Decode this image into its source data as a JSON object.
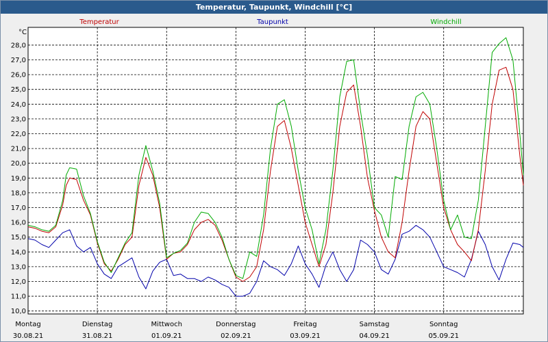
{
  "window": {
    "title": "Temperatur, Taupunkt, Windchill [°C]"
  },
  "chart_data": {
    "type": "line",
    "title": "Temperatur, Taupunkt, Windchill [°C]",
    "ylabel": "°C",
    "ylim": [
      9.8,
      29.2
    ],
    "yticks": [
      "10,0",
      "11,0",
      "12,0",
      "13,0",
      "14,0",
      "15,0",
      "16,0",
      "17,0",
      "18,0",
      "19,0",
      "20,0",
      "21,0",
      "22,0",
      "23,0",
      "24,0",
      "25,0",
      "26,0",
      "27,0",
      "28,0"
    ],
    "xlim": [
      0,
      7.15
    ],
    "grid": true,
    "days": [
      {
        "weekday": "Montag",
        "date": "30.08.21"
      },
      {
        "weekday": "Dienstag",
        "date": "31.08.21"
      },
      {
        "weekday": "Mittwoch",
        "date": "01.09.21"
      },
      {
        "weekday": "Donnerstag",
        "date": "02.09.21"
      },
      {
        "weekday": "Freitag",
        "date": "03.09.21"
      },
      {
        "weekday": "Samstag",
        "date": "04.09.21"
      },
      {
        "weekday": "Sonntag",
        "date": "05.09.21"
      }
    ],
    "series": [
      {
        "name": "Temperatur",
        "color": "#c00000",
        "x": [
          0,
          0.1,
          0.2,
          0.3,
          0.4,
          0.5,
          0.55,
          0.6,
          0.7,
          0.8,
          0.9,
          1.0,
          1.1,
          1.2,
          1.3,
          1.4,
          1.5,
          1.6,
          1.7,
          1.8,
          1.9,
          2.0,
          2.1,
          2.2,
          2.3,
          2.4,
          2.5,
          2.6,
          2.7,
          2.8,
          2.9,
          3.0,
          3.1,
          3.2,
          3.3,
          3.4,
          3.5,
          3.6,
          3.7,
          3.8,
          3.9,
          4.0,
          4.1,
          4.2,
          4.3,
          4.4,
          4.5,
          4.6,
          4.7,
          4.8,
          4.9,
          5.0,
          5.1,
          5.2,
          5.3,
          5.4,
          5.5,
          5.6,
          5.7,
          5.8,
          5.9,
          6.0,
          6.1,
          6.2,
          6.3,
          6.4,
          6.5,
          6.6,
          6.7,
          6.8,
          6.9,
          7.0,
          7.1,
          7.15
        ],
        "values": [
          15.7,
          15.6,
          15.4,
          15.3,
          15.7,
          17.2,
          18.5,
          19.0,
          18.9,
          17.5,
          16.5,
          14.6,
          13.2,
          12.7,
          13.5,
          14.5,
          15.0,
          18.5,
          20.4,
          19.2,
          17.0,
          13.5,
          13.9,
          14.0,
          14.5,
          15.5,
          16.0,
          16.2,
          15.8,
          14.8,
          13.5,
          12.3,
          12.0,
          12.3,
          13.0,
          15.5,
          19.5,
          22.5,
          22.9,
          21.0,
          18.5,
          16.0,
          14.5,
          13.0,
          14.5,
          18.0,
          22.5,
          24.8,
          25.3,
          22.5,
          19.0,
          16.8,
          15.0,
          14.0,
          13.6,
          16.0,
          19.5,
          22.5,
          23.5,
          23.0,
          20.0,
          17.0,
          15.5,
          14.5,
          14.0,
          13.4,
          15.5,
          19.5,
          24.0,
          26.3,
          26.5,
          25.0,
          20.5,
          18.5
        ]
      },
      {
        "name": "Taupunkt",
        "color": "#0000aa",
        "x": [
          0,
          0.1,
          0.2,
          0.3,
          0.4,
          0.5,
          0.6,
          0.7,
          0.8,
          0.9,
          1.0,
          1.1,
          1.2,
          1.3,
          1.4,
          1.5,
          1.6,
          1.7,
          1.8,
          1.9,
          2.0,
          2.1,
          2.2,
          2.3,
          2.4,
          2.5,
          2.6,
          2.7,
          2.8,
          2.9,
          3.0,
          3.1,
          3.2,
          3.3,
          3.4,
          3.5,
          3.6,
          3.7,
          3.8,
          3.9,
          4.0,
          4.1,
          4.2,
          4.3,
          4.4,
          4.5,
          4.6,
          4.7,
          4.8,
          4.9,
          5.0,
          5.1,
          5.2,
          5.3,
          5.4,
          5.5,
          5.6,
          5.7,
          5.8,
          5.9,
          6.0,
          6.1,
          6.2,
          6.3,
          6.4,
          6.5,
          6.6,
          6.7,
          6.8,
          6.9,
          7.0,
          7.1,
          7.15
        ],
        "values": [
          14.9,
          14.8,
          14.5,
          14.3,
          14.8,
          15.3,
          15.5,
          14.4,
          14.0,
          14.3,
          13.2,
          12.5,
          12.2,
          13.0,
          13.3,
          13.6,
          12.3,
          11.5,
          12.7,
          13.3,
          13.5,
          12.4,
          12.5,
          12.2,
          12.2,
          12.0,
          12.3,
          12.1,
          11.8,
          11.6,
          11.0,
          11.0,
          11.2,
          12.0,
          13.4,
          13.0,
          12.8,
          12.4,
          13.2,
          14.4,
          13.2,
          12.5,
          11.6,
          13.1,
          14.0,
          12.8,
          12.0,
          12.8,
          14.8,
          14.5,
          14.0,
          12.8,
          12.5,
          13.5,
          15.2,
          15.4,
          15.8,
          15.5,
          15.0,
          14.0,
          13.0,
          12.8,
          12.6,
          12.3,
          13.5,
          15.4,
          14.5,
          13.0,
          12.1,
          13.5,
          14.6,
          14.5,
          14.3
        ]
      },
      {
        "name": "Windchill",
        "color": "#00aa00",
        "x": [
          0,
          0.1,
          0.2,
          0.3,
          0.4,
          0.5,
          0.55,
          0.6,
          0.7,
          0.8,
          0.9,
          1.0,
          1.1,
          1.2,
          1.3,
          1.4,
          1.5,
          1.6,
          1.7,
          1.8,
          1.9,
          2.0,
          2.1,
          2.2,
          2.3,
          2.4,
          2.5,
          2.6,
          2.7,
          2.8,
          2.9,
          3.0,
          3.1,
          3.2,
          3.3,
          3.4,
          3.5,
          3.6,
          3.7,
          3.8,
          3.9,
          4.0,
          4.1,
          4.2,
          4.3,
          4.4,
          4.5,
          4.6,
          4.7,
          4.8,
          4.9,
          5.0,
          5.1,
          5.2,
          5.3,
          5.4,
          5.5,
          5.6,
          5.7,
          5.8,
          5.9,
          6.0,
          6.1,
          6.2,
          6.3,
          6.4,
          6.5,
          6.6,
          6.7,
          6.8,
          6.9,
          7.0,
          7.1,
          7.15
        ],
        "values": [
          15.8,
          15.7,
          15.5,
          15.4,
          15.8,
          17.5,
          19.2,
          19.7,
          19.6,
          17.8,
          16.6,
          14.7,
          13.3,
          12.6,
          13.6,
          14.6,
          15.3,
          19.2,
          21.2,
          19.5,
          17.3,
          13.6,
          13.9,
          14.1,
          14.6,
          16.0,
          16.7,
          16.6,
          16.0,
          15.0,
          13.5,
          12.4,
          12.2,
          14.0,
          13.7,
          16.5,
          21.0,
          24.0,
          24.3,
          22.5,
          19.5,
          17.0,
          15.5,
          13.2,
          15.5,
          19.5,
          24.5,
          26.9,
          27.0,
          23.5,
          20.5,
          17.0,
          16.5,
          15.0,
          19.1,
          18.9,
          22.5,
          24.5,
          24.8,
          24.0,
          21.0,
          17.5,
          15.5,
          16.5,
          15.0,
          14.9,
          17.5,
          22.5,
          27.5,
          28.1,
          28.5,
          27.0,
          22.0,
          19.2
        ]
      }
    ]
  }
}
